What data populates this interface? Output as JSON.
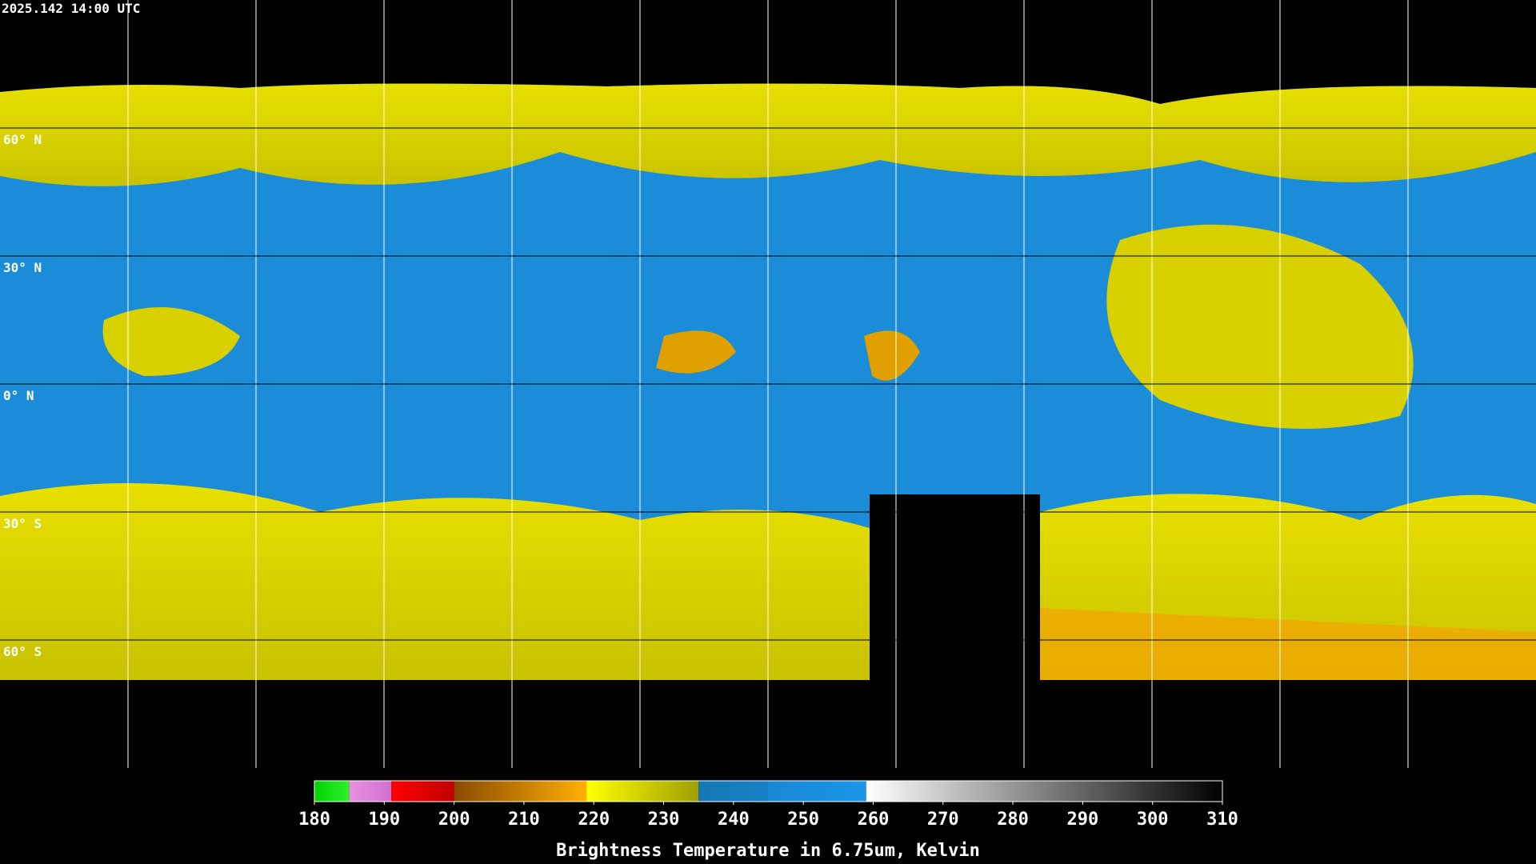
{
  "map": {
    "timestamp": "2025.142 14:00 UTC",
    "lat_labels": [
      "60° N",
      "30° N",
      "0° N",
      "30° S",
      "60° S"
    ]
  },
  "colorbar": {
    "title": "Brightness Temperature in 6.75um, Kelvin",
    "range": [
      180,
      310
    ],
    "ticks": [
      180,
      190,
      200,
      210,
      220,
      230,
      240,
      250,
      260,
      270,
      280,
      290,
      300,
      310
    ],
    "segments": [
      {
        "from": 180,
        "to": 185,
        "start": "#00d000",
        "end": "#30f030"
      },
      {
        "from": 185,
        "to": 191,
        "start": "#e890e0",
        "end": "#d070d0"
      },
      {
        "from": 191,
        "to": 200,
        "start": "#ff0000",
        "end": "#c00000"
      },
      {
        "from": 200,
        "to": 219,
        "start": "#8a4a00",
        "end": "#ffb000"
      },
      {
        "from": 219,
        "to": 235,
        "start": "#ffff00",
        "end": "#a0a000"
      },
      {
        "from": 235,
        "to": 245,
        "start": "#1478b4",
        "end": "#1682c4"
      },
      {
        "from": 245,
        "to": 259,
        "start": "#1888d4",
        "end": "#1a96e8"
      },
      {
        "from": 259,
        "to": 310,
        "start": "#ffffff",
        "end": "#000000"
      }
    ]
  }
}
